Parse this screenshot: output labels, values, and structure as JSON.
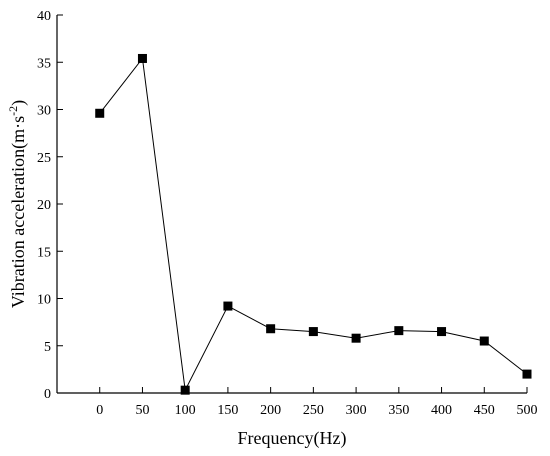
{
  "chart_data": {
    "type": "line",
    "xlabel": "Frequency(Hz)",
    "ylabel_prefix": "Vibration acceleration(m·s",
    "ylabel_sup": "-2",
    "ylabel_suffix": ")",
    "xlim": [
      -50,
      500
    ],
    "ylim": [
      0,
      40
    ],
    "x_ticks": [
      0,
      50,
      100,
      150,
      200,
      250,
      300,
      350,
      400,
      450,
      500
    ],
    "y_ticks": [
      0,
      5,
      10,
      15,
      20,
      25,
      30,
      35,
      40
    ],
    "grid": false,
    "marker": "square",
    "series": [
      {
        "x": [
          0,
          50,
          100,
          150,
          200,
          250,
          300,
          350,
          400,
          450,
          500
        ],
        "values": [
          29.6,
          35.4,
          0.3,
          9.2,
          6.8,
          6.5,
          5.8,
          6.6,
          6.5,
          5.5,
          2.0
        ]
      }
    ]
  }
}
